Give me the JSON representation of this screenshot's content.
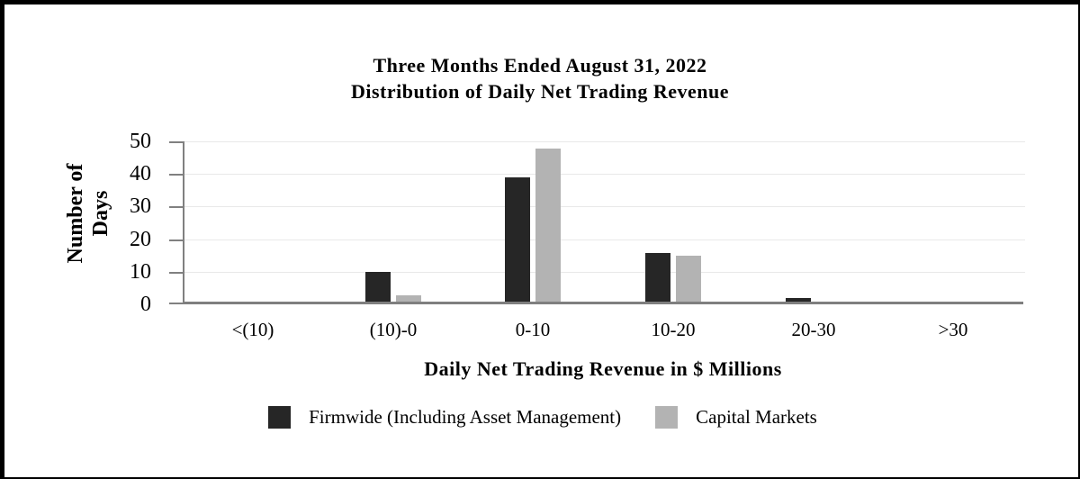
{
  "title": {
    "line1": "Three Months Ended August 31, 2022",
    "line2": "Distribution of Daily Net Trading Revenue"
  },
  "y_axis": {
    "title_line1": "Number of",
    "title_line2": "Days",
    "tick_labels": [
      "50",
      "40",
      "30",
      "20",
      "10",
      "0"
    ]
  },
  "x_axis": {
    "title": "Daily Net Trading Revenue in $ Millions"
  },
  "legend": [
    {
      "label": "Firmwide (Including Asset Management)",
      "color": "#262626"
    },
    {
      "label": "Capital Markets",
      "color": "#b3b3b3"
    }
  ],
  "colors": {
    "firmwide_bar": "#262626",
    "capital_markets_bar": "#b3b3b3",
    "gridline": "#e9e9e9",
    "axis_line": "#808080",
    "frame_border": "#000000"
  },
  "chart_data": {
    "type": "bar",
    "title": "Three Months Ended August 31, 2022 — Distribution of Daily Net Trading Revenue",
    "categories": [
      "<(10)",
      "(10)-0",
      "0-10",
      "10-20",
      "20-30",
      ">30"
    ],
    "series": [
      {
        "name": "Firmwide (Including Asset Management)",
        "color": "#262626",
        "values": [
          0,
          9,
          38,
          15,
          1,
          0
        ]
      },
      {
        "name": "Capital Markets",
        "color": "#b3b3b3",
        "values": [
          0,
          2,
          47,
          14,
          0,
          0
        ]
      }
    ],
    "xlabel": "Daily Net Trading Revenue in $ Millions",
    "ylabel": "Number of Days",
    "ylim": [
      0,
      50
    ],
    "ytick_step": 10,
    "grid": true,
    "legend_position": "bottom"
  }
}
